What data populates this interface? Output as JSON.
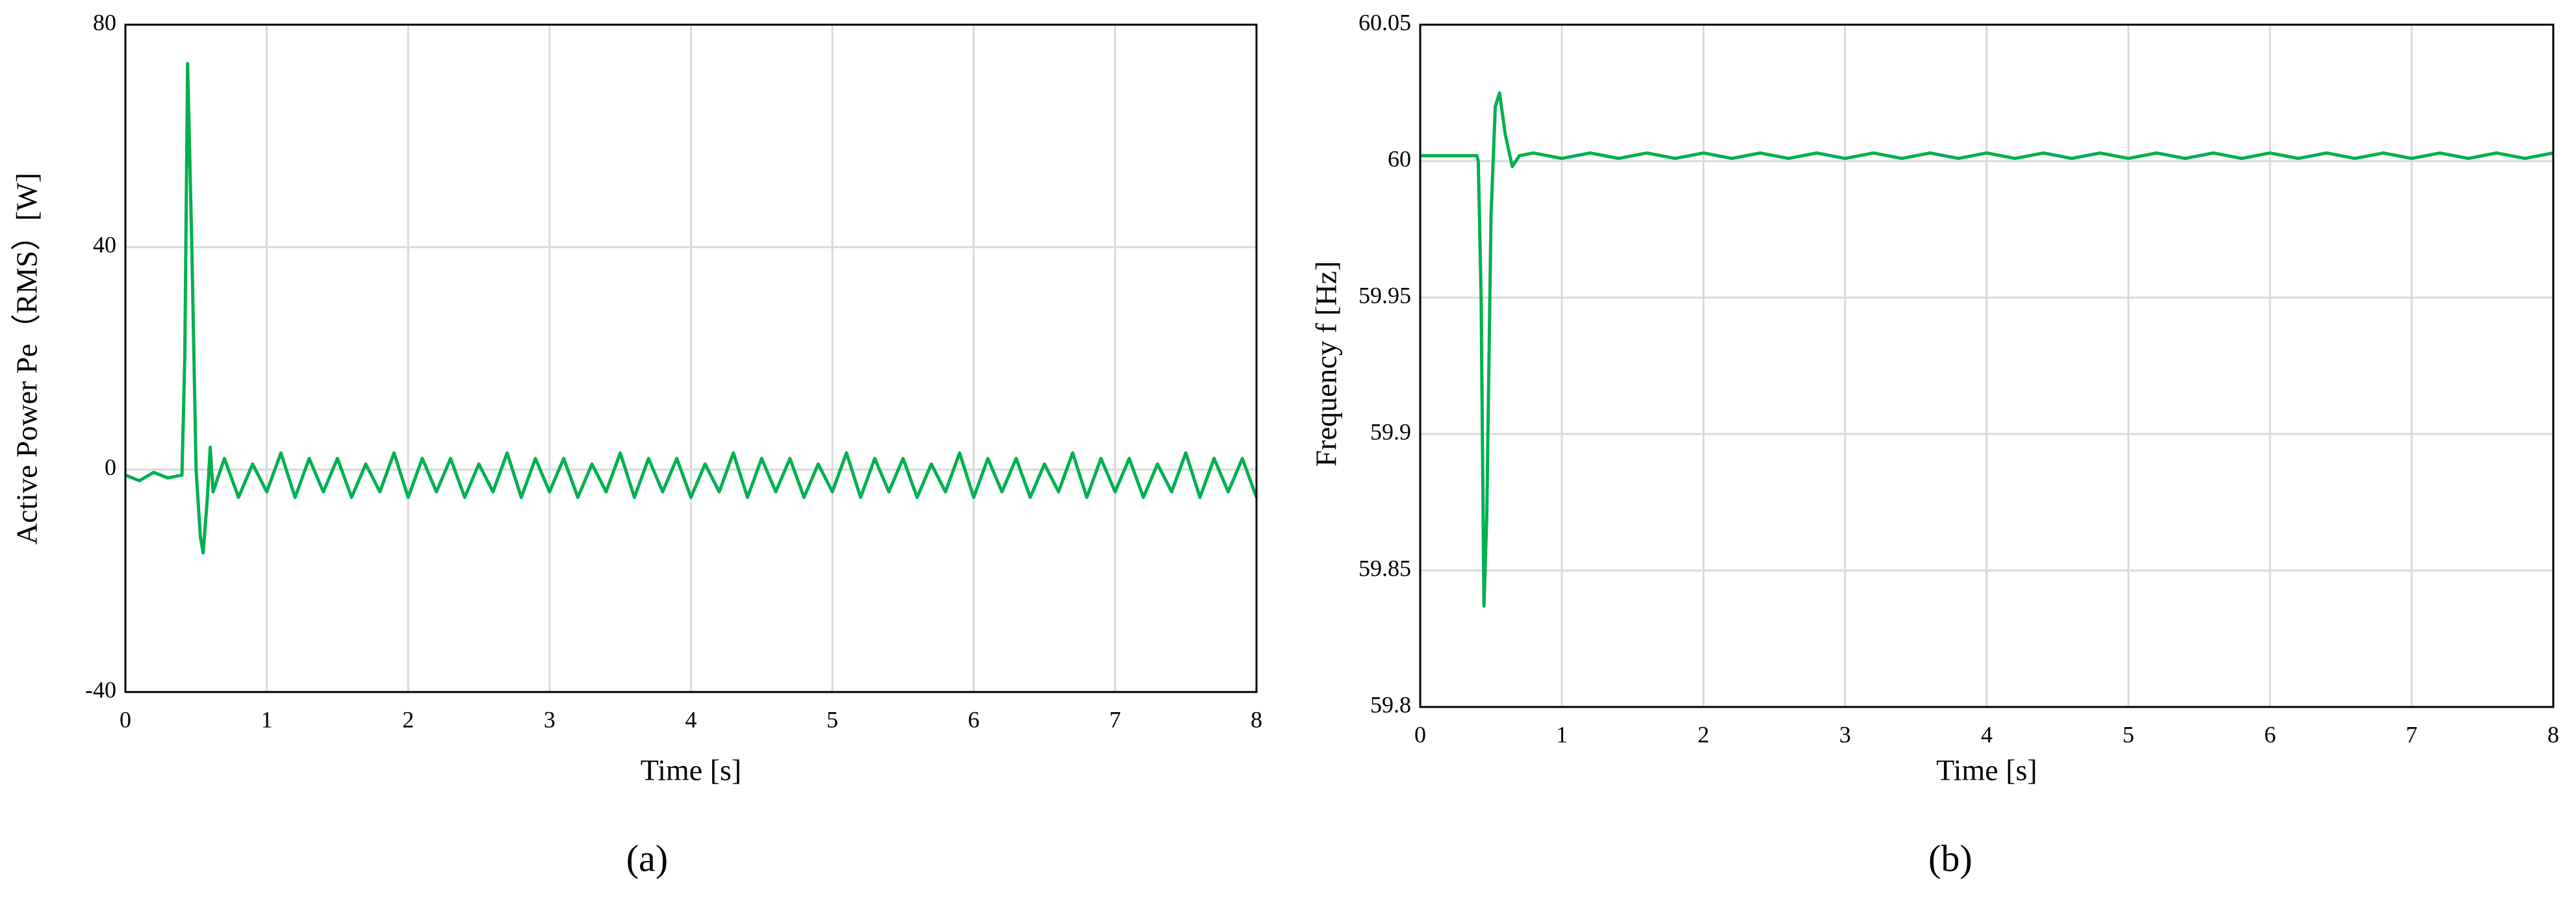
{
  "chart_data": [
    {
      "type": "line",
      "caption": "(a)",
      "ylabel": "Active Power Pe（RMS）[W]",
      "xlabel": "Time [s]",
      "xlim": [
        0,
        8
      ],
      "xticks": [
        0,
        1,
        2,
        3,
        4,
        5,
        6,
        7,
        8
      ],
      "ylim": [
        -40,
        80
      ],
      "yticks": [
        -40,
        0,
        40,
        80
      ],
      "grid": true,
      "series": [
        {
          "name": "Pe",
          "color": "#00b050",
          "x": [
            0,
            0.1,
            0.2,
            0.3,
            0.4,
            0.42,
            0.44,
            0.47,
            0.5,
            0.53,
            0.55,
            0.58,
            0.6,
            0.62,
            0.7,
            0.8,
            0.9,
            1,
            1.1,
            1.2,
            1.3,
            1.4,
            1.5,
            1.6,
            1.7,
            1.8,
            1.9,
            2,
            2.1,
            2.2,
            2.3,
            2.4,
            2.5,
            2.6,
            2.7,
            2.8,
            2.9,
            3,
            3.1,
            3.2,
            3.3,
            3.4,
            3.5,
            3.6,
            3.7,
            3.8,
            3.9,
            4,
            4.1,
            4.2,
            4.3,
            4.4,
            4.5,
            4.6,
            4.7,
            4.8,
            4.9,
            5,
            5.1,
            5.2,
            5.3,
            5.4,
            5.5,
            5.6,
            5.7,
            5.8,
            5.9,
            6,
            6.1,
            6.2,
            6.3,
            6.4,
            6.5,
            6.6,
            6.7,
            6.8,
            6.9,
            7,
            7.1,
            7.2,
            7.3,
            7.4,
            7.5,
            7.6,
            7.7,
            7.8,
            7.9,
            8
          ],
          "values": [
            -1,
            -2,
            -0.5,
            -1.5,
            -1,
            20,
            73,
            40,
            0,
            -12,
            -15,
            -5,
            4,
            -4,
            2,
            -5,
            1,
            -4,
            3,
            -5,
            2,
            -4,
            2,
            -5,
            1,
            -4,
            3,
            -5,
            2,
            -4,
            2,
            -5,
            1,
            -4,
            3,
            -5,
            2,
            -4,
            2,
            -5,
            1,
            -4,
            3,
            -5,
            2,
            -4,
            2,
            -5,
            1,
            -4,
            3,
            -5,
            2,
            -4,
            2,
            -5,
            1,
            -4,
            3,
            -5,
            2,
            -4,
            2,
            -5,
            1,
            -4,
            3,
            -5,
            2,
            -4,
            2,
            -5,
            1,
            -4,
            3,
            -5,
            2,
            -4,
            2,
            -5,
            1,
            -4,
            3,
            -5,
            2,
            -4,
            2,
            -5
          ]
        }
      ]
    },
    {
      "type": "line",
      "caption": "(b)",
      "ylabel": "Frequency f [Hz]",
      "xlabel": "Time [s]",
      "xlim": [
        0,
        8
      ],
      "xticks": [
        0,
        1,
        2,
        3,
        4,
        5,
        6,
        7,
        8
      ],
      "ylim": [
        59.8,
        60.05
      ],
      "yticks": [
        59.8,
        59.85,
        59.9,
        59.95,
        60,
        60.05
      ],
      "grid": true,
      "series": [
        {
          "name": "f",
          "color": "#00b050",
          "x": [
            0,
            0.4,
            0.41,
            0.43,
            0.45,
            0.47,
            0.5,
            0.53,
            0.56,
            0.6,
            0.65,
            0.7,
            0.8,
            1,
            1.2,
            1.4,
            1.6,
            1.8,
            2,
            2.2,
            2.4,
            2.6,
            2.8,
            3,
            3.2,
            3.4,
            3.6,
            3.8,
            4,
            4.2,
            4.4,
            4.6,
            4.8,
            5,
            5.2,
            5.4,
            5.6,
            5.8,
            6,
            6.2,
            6.4,
            6.6,
            6.8,
            7,
            7.2,
            7.4,
            7.6,
            7.8,
            8
          ],
          "values": [
            60.002,
            60.002,
            60.0,
            59.95,
            59.837,
            59.87,
            59.98,
            60.02,
            60.025,
            60.01,
            59.998,
            60.002,
            60.003,
            60.001,
            60.003,
            60.001,
            60.003,
            60.001,
            60.003,
            60.001,
            60.003,
            60.001,
            60.003,
            60.001,
            60.003,
            60.001,
            60.003,
            60.001,
            60.003,
            60.001,
            60.003,
            60.001,
            60.003,
            60.001,
            60.003,
            60.001,
            60.003,
            60.001,
            60.003,
            60.001,
            60.003,
            60.001,
            60.003,
            60.001,
            60.003,
            60.001,
            60.003,
            60.001,
            60.003
          ]
        }
      ]
    }
  ]
}
